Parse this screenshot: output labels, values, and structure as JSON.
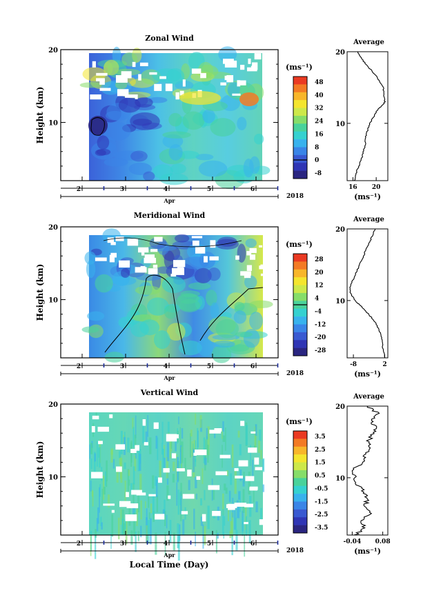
{
  "xlabel": "Local Time (Day)",
  "chart_data": [
    {
      "type": "heatmap",
      "title": "Zonal Wind",
      "ylabel": "Height (km)",
      "ylim": [
        2,
        20
      ],
      "yticks": [
        "10",
        "20"
      ],
      "xticks": [
        "2",
        "3",
        "4",
        "5",
        "6"
      ],
      "month": "Apr",
      "year": "2018",
      "cbar_label": "(ms⁻¹)",
      "cbar_ticks": [
        "48",
        "40",
        "32",
        "24",
        "16",
        "8",
        "0",
        "-8"
      ],
      "cbar_colors": [
        "#ea3a22",
        "#f37a24",
        "#f8b62a",
        "#f4e52e",
        "#cde84a",
        "#86dd69",
        "#49d29b",
        "#35d1d0",
        "#38b2ed",
        "#3a85e7",
        "#3959d1",
        "#2f35b4",
        "#2a2580"
      ],
      "avg_title": "Average",
      "avg_xticks": [
        "16",
        "20"
      ],
      "avg_xlim": [
        15,
        22
      ],
      "avg_profile": [
        [
          2,
          16.3
        ],
        [
          3,
          16.5
        ],
        [
          4,
          17
        ],
        [
          5,
          17.5
        ],
        [
          6,
          17.8
        ],
        [
          7,
          18.1
        ],
        [
          8,
          18.2
        ],
        [
          9,
          18.5
        ],
        [
          10,
          18.9
        ],
        [
          11,
          19.6
        ],
        [
          12,
          20.3
        ],
        [
          12.6,
          21.2
        ],
        [
          13,
          21.5
        ],
        [
          14,
          21.3
        ],
        [
          15,
          21.2
        ],
        [
          16,
          20.5
        ],
        [
          17,
          19.6
        ],
        [
          18,
          18.5
        ],
        [
          19,
          17.5
        ],
        [
          20,
          16.8
        ]
      ],
      "avg_xlabel": "(ms⁻¹)"
    },
    {
      "type": "heatmap",
      "title": "Meridional Wind",
      "ylabel": "Height (km)",
      "ylim": [
        2,
        20
      ],
      "yticks": [
        "10",
        "20"
      ],
      "xticks": [
        "2",
        "3",
        "4",
        "5",
        "6"
      ],
      "month": "Apr",
      "year": "2018",
      "cbar_label": "(ms⁻¹)",
      "cbar_ticks": [
        "28",
        "20",
        "12",
        "4",
        "-4",
        "-12",
        "-20",
        "-28"
      ],
      "cbar_colors": [
        "#ea3a22",
        "#f37a24",
        "#f8b62a",
        "#f4e52e",
        "#cde84a",
        "#86dd69",
        "#49d29b",
        "#35d1d0",
        "#38b2ed",
        "#3a85e7",
        "#3959d1",
        "#2f35b4",
        "#2a2580"
      ],
      "avg_title": "Average",
      "avg_xticks": [
        "-8",
        "2"
      ],
      "avg_xlim": [
        -10,
        3
      ],
      "avg_profile": [
        [
          2,
          2
        ],
        [
          3,
          1.5
        ],
        [
          4,
          1.2
        ],
        [
          5,
          1
        ],
        [
          6,
          0
        ],
        [
          7,
          -1
        ],
        [
          8,
          -3
        ],
        [
          9,
          -5
        ],
        [
          10,
          -7.5
        ],
        [
          11,
          -9
        ],
        [
          12,
          -9
        ],
        [
          13,
          -8
        ],
        [
          14,
          -7
        ],
        [
          15,
          -6
        ],
        [
          16,
          -5
        ],
        [
          17,
          -4
        ],
        [
          18,
          -3
        ],
        [
          19,
          -2
        ],
        [
          20,
          -1
        ]
      ],
      "avg_xlabel": "(ms⁻¹)"
    },
    {
      "type": "heatmap",
      "title": "Vertical Wind",
      "ylabel": "Height (km)",
      "ylim": [
        2,
        20
      ],
      "yticks": [
        "10",
        "20"
      ],
      "xticks": [
        "2",
        "3",
        "4",
        "5",
        "6"
      ],
      "month": "Apr",
      "year": "2018",
      "cbar_label": "(ms⁻¹)",
      "cbar_ticks": [
        "3.5",
        "2.5",
        "1.5",
        "0.5",
        "-0.5",
        "-1.5",
        "-2.5",
        "-3.5"
      ],
      "cbar_colors": [
        "#ea3a22",
        "#f37a24",
        "#f8b62a",
        "#f4e52e",
        "#cde84a",
        "#86dd69",
        "#49d29b",
        "#35d1d0",
        "#38b2ed",
        "#3a85e7",
        "#3959d1",
        "#2f35b4",
        "#2a2580"
      ],
      "avg_title": "Average",
      "avg_xticks": [
        "-0.04",
        "0.08"
      ],
      "avg_xlim": [
        -0.06,
        0.1
      ],
      "avg_profile": [
        [
          2,
          -0.03
        ],
        [
          3,
          0.01
        ],
        [
          4,
          0.0
        ],
        [
          5,
          0.03
        ],
        [
          6,
          0.01
        ],
        [
          7,
          0.02
        ],
        [
          8,
          0.01
        ],
        [
          9,
          -0.02
        ],
        [
          10,
          -0.03
        ],
        [
          11,
          -0.04
        ],
        [
          12,
          0.0
        ],
        [
          13,
          0.01
        ],
        [
          14,
          0.03
        ],
        [
          15,
          0.02
        ],
        [
          16,
          0.04
        ],
        [
          17,
          0.05
        ],
        [
          18,
          0.03
        ],
        [
          19,
          0.06
        ],
        [
          20,
          0.02
        ]
      ],
      "avg_xlabel": "(ms⁻¹)"
    }
  ]
}
